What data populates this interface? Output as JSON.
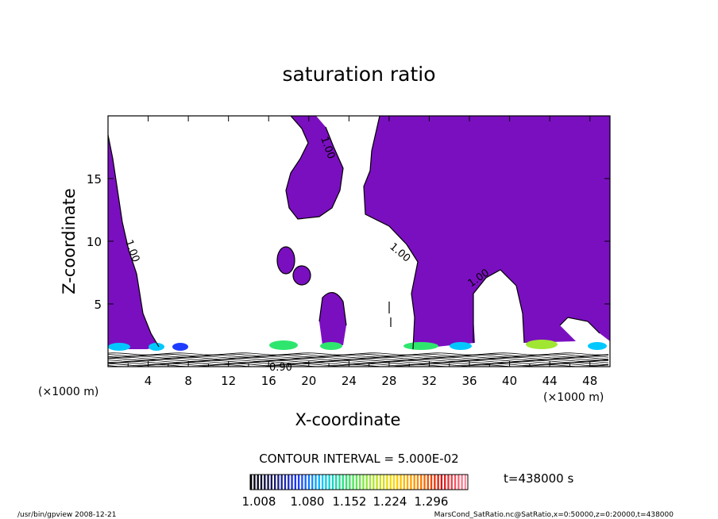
{
  "chart_data": {
    "type": "heatmap",
    "title": "saturation ratio",
    "xlabel": "X-coordinate",
    "ylabel": "Z-coordinate",
    "x_unit": "(×1000 m)",
    "y_unit": "(×1000 m)",
    "xlim": [
      0,
      50
    ],
    "ylim": [
      0,
      20
    ],
    "x_ticks": [
      4,
      8,
      12,
      16,
      20,
      24,
      28,
      32,
      36,
      40,
      44,
      48
    ],
    "y_ticks": [
      5,
      10,
      15
    ],
    "contour_interval": "CONTOUR INTERVAL = 5.000E-02",
    "contour_labels": [
      "1.00",
      "1.00",
      "1.00",
      "1.00",
      "0.90"
    ],
    "colorbar": {
      "ticks": [
        "1.008",
        "1.080",
        "1.152",
        "1.224",
        "1.296"
      ],
      "min": 1.0,
      "max": 1.32,
      "colors": [
        "#000000",
        "#1a1a6e",
        "#1e3cff",
        "#00c8ff",
        "#2ee66e",
        "#a0e632",
        "#ffd700",
        "#ff8c00",
        "#e01010",
        "#ff8ca0"
      ]
    },
    "fill_color": "#7a0fc0",
    "time_label": "t=438000 s"
  },
  "footer": {
    "left": "/usr/bin/gpview   2008-12-21",
    "right": "MarsCond_SatRatio.nc@SatRatio,x=0:50000,z=0:20000,t=438000"
  }
}
